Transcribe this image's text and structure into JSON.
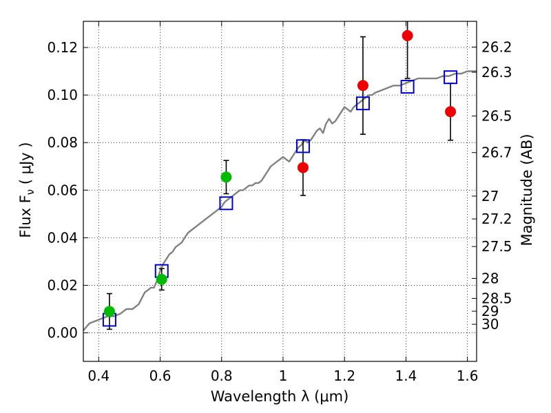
{
  "chart_data": {
    "type": "scatter",
    "xlabel": "Wavelength  λ (μm)",
    "ylabel_left": "Flux  F_ν ( μJy )",
    "ylabel_right": "Magnitude (AB)",
    "xlim": [
      0.35,
      1.63
    ],
    "ylim": [
      -0.012,
      0.131
    ],
    "grid": true,
    "x_ticks": [
      0.4,
      0.6,
      0.8,
      1.0,
      1.2,
      1.4,
      1.6
    ],
    "x_tick_labels": [
      "0.4",
      "0.6",
      "0.8",
      "1",
      "1.2",
      "1.4",
      "1.6"
    ],
    "y_ticks": [
      0.0,
      0.02,
      0.04,
      0.06,
      0.08,
      0.1,
      0.12
    ],
    "y_tick_labels": [
      "0.00",
      "0.02",
      "0.04",
      "0.06",
      "0.08",
      "0.10",
      "0.12"
    ],
    "right_ticks": [
      {
        "label": "26.2",
        "flux": 0.1202
      },
      {
        "label": "26.3",
        "flux": 0.1096
      },
      {
        "label": "26.5",
        "flux": 0.0912
      },
      {
        "label": "26.7",
        "flux": 0.0758
      },
      {
        "label": "27",
        "flux": 0.0575
      },
      {
        "label": "27.2",
        "flux": 0.0479
      },
      {
        "label": "27.5",
        "flux": 0.0363
      },
      {
        "label": "28",
        "flux": 0.0229
      },
      {
        "label": "28.5",
        "flux": 0.0145
      },
      {
        "label": "29",
        "flux": 0.0091
      },
      {
        "label": "30",
        "flux": 0.0036
      }
    ],
    "series": [
      {
        "kind": "line",
        "color": "#808080",
        "x": [
          0.35,
          0.37,
          0.39,
          0.41,
          0.43,
          0.45,
          0.47,
          0.49,
          0.51,
          0.53,
          0.55,
          0.56,
          0.57,
          0.58,
          0.59,
          0.6,
          0.61,
          0.62,
          0.63,
          0.64,
          0.65,
          0.66,
          0.67,
          0.68,
          0.69,
          0.7,
          0.71,
          0.72,
          0.73,
          0.74,
          0.75,
          0.76,
          0.77,
          0.78,
          0.79,
          0.8,
          0.81,
          0.82,
          0.83,
          0.84,
          0.85,
          0.86,
          0.87,
          0.88,
          0.89,
          0.9,
          0.91,
          0.92,
          0.93,
          0.94,
          0.95,
          0.96,
          0.97,
          0.98,
          0.99,
          1.0,
          1.01,
          1.02,
          1.03,
          1.04,
          1.05,
          1.06,
          1.07,
          1.08,
          1.09,
          1.1,
          1.11,
          1.12,
          1.13,
          1.14,
          1.15,
          1.16,
          1.17,
          1.18,
          1.19,
          1.2,
          1.21,
          1.22,
          1.23,
          1.24,
          1.25,
          1.26,
          1.27,
          1.28,
          1.29,
          1.3,
          1.32,
          1.34,
          1.36,
          1.38,
          1.4,
          1.42,
          1.44,
          1.46,
          1.48,
          1.5,
          1.52,
          1.54,
          1.56,
          1.58,
          1.6,
          1.62,
          1.63
        ],
        "y": [
          0.001,
          0.004,
          0.005,
          0.006,
          0.007,
          0.007,
          0.008,
          0.01,
          0.01,
          0.012,
          0.017,
          0.018,
          0.019,
          0.019,
          0.022,
          0.026,
          0.029,
          0.031,
          0.033,
          0.034,
          0.036,
          0.037,
          0.038,
          0.04,
          0.042,
          0.043,
          0.044,
          0.045,
          0.046,
          0.047,
          0.048,
          0.049,
          0.05,
          0.051,
          0.052,
          0.053,
          0.055,
          0.056,
          0.057,
          0.058,
          0.059,
          0.06,
          0.06,
          0.061,
          0.062,
          0.062,
          0.063,
          0.063,
          0.064,
          0.066,
          0.068,
          0.07,
          0.071,
          0.072,
          0.073,
          0.074,
          0.073,
          0.072,
          0.074,
          0.076,
          0.078,
          0.079,
          0.081,
          0.08,
          0.081,
          0.083,
          0.085,
          0.086,
          0.084,
          0.088,
          0.09,
          0.088,
          0.089,
          0.091,
          0.093,
          0.095,
          0.094,
          0.093,
          0.095,
          0.096,
          0.097,
          0.098,
          0.099,
          0.1,
          0.1,
          0.101,
          0.102,
          0.103,
          0.104,
          0.104,
          0.105,
          0.106,
          0.107,
          0.107,
          0.107,
          0.107,
          0.108,
          0.108,
          0.109,
          0.109,
          0.11,
          0.11,
          0.11
        ]
      },
      {
        "kind": "model-squares",
        "color": "#0000cc",
        "x": [
          0.435,
          0.605,
          0.815,
          1.065,
          1.26,
          1.405,
          1.545
        ],
        "y": [
          0.0055,
          0.026,
          0.0545,
          0.0785,
          0.0965,
          0.1035,
          0.1075
        ]
      },
      {
        "kind": "points-green",
        "color": "#00bb00",
        "x": [
          0.435,
          0.605,
          0.815
        ],
        "y": [
          0.009,
          0.0225,
          0.0655
        ],
        "yerr": [
          0.0075,
          0.0045,
          0.007
        ]
      },
      {
        "kind": "points-red",
        "color": "#ee0000",
        "x": [
          1.065,
          1.26,
          1.405,
          1.545
        ],
        "y": [
          0.0695,
          0.104,
          0.125,
          0.093
        ],
        "yerr": [
          0.0117,
          0.0205,
          0.018,
          0.012
        ]
      }
    ]
  }
}
